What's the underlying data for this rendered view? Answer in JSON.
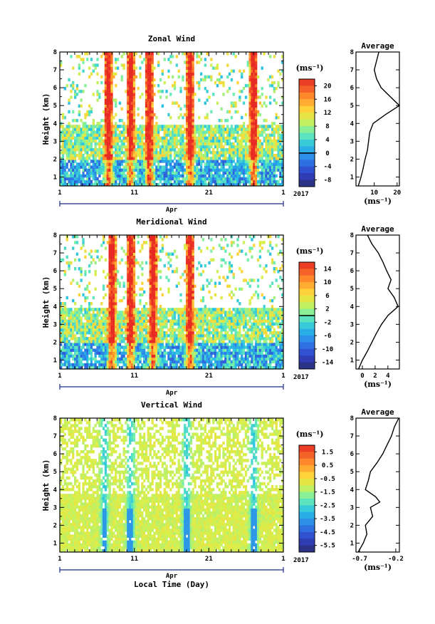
{
  "chart_data": [
    {
      "type": "heatmap",
      "title": "Zonal Wind",
      "ylabel": "Height (km)",
      "xlabel": "",
      "xlim_day": [
        1,
        31
      ],
      "x_ticks": [
        "1",
        "11",
        "21",
        "1"
      ],
      "month_label": "Apr",
      "year_label": "2017",
      "ylim": [
        0.5,
        8
      ],
      "y_ticks": [
        "1",
        "2",
        "3",
        "4",
        "5",
        "6",
        "7",
        "8"
      ],
      "colorbar": {
        "unit": "(ms⁻¹)",
        "vmin": -10,
        "vmax": 22,
        "ticks": [
          "20",
          "16",
          "12",
          "8",
          "4",
          "0",
          "-4",
          "-8"
        ],
        "tick_values": [
          20,
          16,
          12,
          8,
          4,
          0,
          -4,
          -8
        ],
        "zero_line": 0
      },
      "average_profile": {
        "title": "Average",
        "xlabel": "(ms⁻¹)",
        "xlim": [
          2,
          21
        ],
        "x_ticks": [
          "10",
          "20"
        ],
        "x_tick_values": [
          10,
          20
        ],
        "height": [
          0.5,
          0.9,
          1.4,
          2.0,
          2.5,
          3.0,
          3.5,
          4.0,
          4.5,
          5.0,
          5.5,
          6.0,
          6.5,
          7.0,
          7.5,
          8.0
        ],
        "value": [
          3.0,
          4.0,
          5.0,
          6.0,
          7.0,
          7.5,
          8.0,
          9.5,
          15.0,
          21.0,
          17.0,
          13.0,
          11.0,
          10.0,
          11.0,
          12.0
        ]
      }
    },
    {
      "type": "heatmap",
      "title": "Meridional Wind",
      "ylabel": "Height (km)",
      "xlabel": "",
      "xlim_day": [
        1,
        31
      ],
      "x_ticks": [
        "1",
        "11",
        "21",
        "1"
      ],
      "month_label": "Apr",
      "year_label": "2017",
      "ylim": [
        0.5,
        8
      ],
      "y_ticks": [
        "1",
        "2",
        "3",
        "4",
        "5",
        "6",
        "7",
        "8"
      ],
      "colorbar": {
        "unit": "(ms⁻¹)",
        "vmin": -16,
        "vmax": 16,
        "ticks": [
          "14",
          "10",
          "6",
          "2",
          "-2",
          "-6",
          "-10",
          "-14"
        ],
        "tick_values": [
          14,
          10,
          6,
          2,
          -2,
          -6,
          -10,
          -14
        ],
        "zero_line": 0
      },
      "average_profile": {
        "title": "Average",
        "xlabel": "(ms⁻¹)",
        "xlim": [
          -1,
          5.8
        ],
        "x_ticks": [
          "0",
          "2",
          "4"
        ],
        "x_tick_values": [
          0,
          2,
          4
        ],
        "height": [
          0.5,
          1.0,
          1.5,
          2.0,
          2.5,
          3.0,
          3.5,
          4.0,
          4.5,
          5.0,
          5.5,
          6.0,
          6.5,
          7.0,
          7.5,
          8.0
        ],
        "value": [
          -0.6,
          0.0,
          0.8,
          1.5,
          2.2,
          3.0,
          4.0,
          5.6,
          5.0,
          4.0,
          4.5,
          3.8,
          3.2,
          2.5,
          1.5,
          0.8
        ]
      }
    },
    {
      "type": "heatmap",
      "title": "Vertical Wind",
      "ylabel": "Height (km)",
      "xlabel": "Local Time (Day)",
      "xlim_day": [
        1,
        31
      ],
      "x_ticks": [
        "1",
        "11",
        "21",
        "1"
      ],
      "month_label": "Apr",
      "year_label": "2017",
      "ylim": [
        0.5,
        8
      ],
      "y_ticks": [
        "1",
        "2",
        "3",
        "4",
        "5",
        "6",
        "7",
        "8"
      ],
      "colorbar": {
        "unit": "(ms⁻¹)",
        "vmin": -6.0,
        "vmax": 2.0,
        "ticks": [
          "1.5",
          "0.5",
          "-0.5",
          "-1.5",
          "-2.5",
          "-3.5",
          "-4.5",
          "-5.5"
        ],
        "tick_values": [
          1.5,
          0.5,
          -0.5,
          -1.5,
          -2.5,
          -3.5,
          -4.5,
          -5.5
        ]
      },
      "average_profile": {
        "title": "Average",
        "xlabel": "(ms⁻¹)",
        "xlim": [
          -0.75,
          -0.15
        ],
        "x_ticks": [
          "-0.7",
          "-0.2"
        ],
        "x_tick_values": [
          -0.7,
          -0.2
        ],
        "height": [
          0.5,
          1.0,
          1.5,
          2.0,
          2.5,
          3.0,
          3.3,
          3.6,
          4.0,
          4.5,
          5.0,
          5.5,
          6.0,
          6.5,
          7.0,
          7.5,
          8.0
        ],
        "value": [
          -0.72,
          -0.65,
          -0.6,
          -0.62,
          -0.52,
          -0.55,
          -0.42,
          -0.48,
          -0.62,
          -0.58,
          -0.55,
          -0.46,
          -0.38,
          -0.32,
          -0.26,
          -0.22,
          -0.16
        ]
      }
    }
  ]
}
